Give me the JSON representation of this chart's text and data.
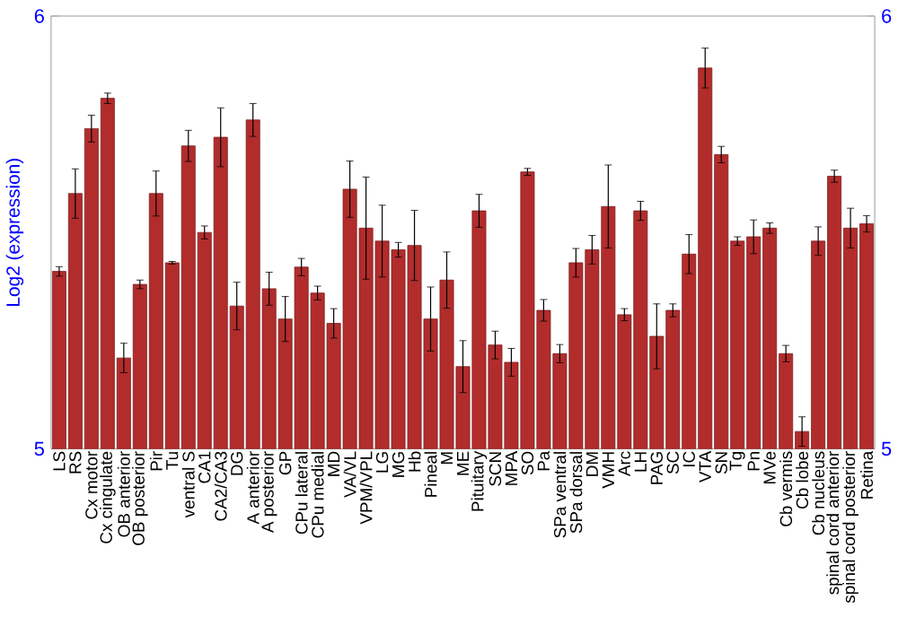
{
  "chart_data": {
    "type": "bar",
    "ylabel": "Log2 (expression)",
    "categories": [
      "LS",
      "RS",
      "Cx motor",
      "Cx cingulate",
      "OB anterior",
      "OB posterior",
      "Pir",
      "Tu",
      "ventral S",
      "CA1",
      "CA2/CA3",
      "DG",
      "A anterior",
      "A posterior",
      "GP",
      "CPu lateral",
      "CPu medial",
      "MD",
      "VA/VL",
      "VPM/VPL",
      "LG",
      "MG",
      "Hb",
      "Pineal",
      "M",
      "ME",
      "Pituitary",
      "SCN",
      "MPA",
      "SO",
      "Pa",
      "SPa ventral",
      "SPa dorsal",
      "DM",
      "VMH",
      "Arc",
      "LH",
      "PAG",
      "SC",
      "IC",
      "VTA",
      "SN",
      "Tg",
      "Pn",
      "MVe",
      "Cb vermis",
      "Cb lobe",
      "Cb nucleus",
      "spinal cord anterior",
      "spinal cord posterior",
      "Retina"
    ],
    "values": [
      5.41,
      5.59,
      5.74,
      5.81,
      5.21,
      5.38,
      5.59,
      5.43,
      5.7,
      5.5,
      5.72,
      5.33,
      5.76,
      5.37,
      5.3,
      5.42,
      5.36,
      5.29,
      5.6,
      5.51,
      5.48,
      5.46,
      5.47,
      5.3,
      5.39,
      5.19,
      5.55,
      5.24,
      5.2,
      5.64,
      5.32,
      5.22,
      5.43,
      5.46,
      5.56,
      5.31,
      5.55,
      5.26,
      5.32,
      5.45,
      5.88,
      5.68,
      5.48,
      5.49,
      5.51,
      5.22,
      5.04,
      5.48,
      5.63,
      5.51,
      5.52
    ],
    "errors": [
      0.011,
      0.057,
      0.031,
      0.012,
      0.034,
      0.01,
      0.052,
      0.003,
      0.036,
      0.015,
      0.068,
      0.055,
      0.038,
      0.038,
      0.052,
      0.02,
      0.016,
      0.034,
      0.065,
      0.118,
      0.083,
      0.017,
      0.081,
      0.074,
      0.065,
      0.06,
      0.038,
      0.032,
      0.032,
      0.008,
      0.025,
      0.021,
      0.033,
      0.033,
      0.096,
      0.014,
      0.022,
      0.075,
      0.015,
      0.045,
      0.046,
      0.019,
      0.01,
      0.039,
      0.012,
      0.019,
      0.034,
      0.033,
      0.014,
      0.046,
      0.019
    ],
    "color": "#b22c2c",
    "ylim": [
      5,
      6
    ],
    "yticks": [
      5,
      6
    ],
    "y2lim": [
      5,
      6
    ],
    "y2ticks": [
      5,
      6
    ],
    "grid": false
  }
}
